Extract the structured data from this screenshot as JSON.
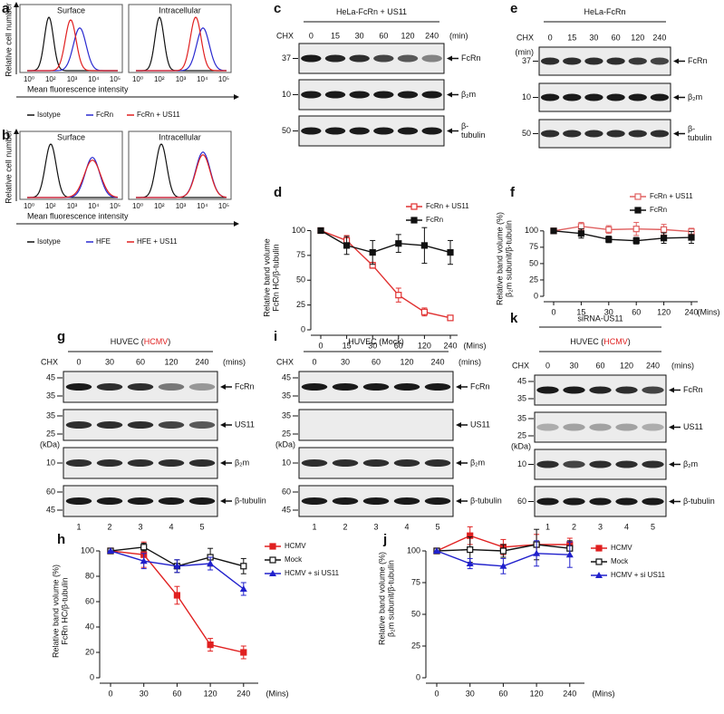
{
  "flow": [
    {
      "panel": "a",
      "boxes": [
        "Surface",
        "Intracellular"
      ],
      "y_label": "Relative cell number",
      "x_label": "Mean fluorescence intensity",
      "x_ticks": [
        "10⁰",
        "10²",
        "10³",
        "10⁴",
        "10⁵"
      ],
      "legend": [
        {
          "name": "Isotype",
          "color": "#111111"
        },
        {
          "name": "FcRn",
          "color": "#2a2ad0"
        },
        {
          "name": "FcRn + US11",
          "color": "#e02020"
        }
      ]
    },
    {
      "panel": "b",
      "boxes": [
        "Surface",
        "Intracellular"
      ],
      "y_label": "Relative cell number",
      "x_label": "Mean fluorescence intensity",
      "x_ticks": [
        "10⁰",
        "10²",
        "10³",
        "10⁴",
        "10⁵"
      ],
      "legend": [
        {
          "name": "Isotype",
          "color": "#111111"
        },
        {
          "name": "HFE",
          "color": "#2a2ad0"
        },
        {
          "name": "HFE + US11",
          "color": "#e02020"
        }
      ]
    }
  ],
  "blots": [
    {
      "panel": "c",
      "title": [
        {
          "text": "HeLa-FcRn + US11",
          "color": "#111111"
        }
      ],
      "treatment": "CHX",
      "times": [
        0,
        15,
        30,
        60,
        120,
        240
      ],
      "unit": "(min)",
      "rows": [
        {
          "markers": [
            37
          ],
          "label": [
            "FcRn"
          ]
        },
        {
          "markers": [
            10
          ],
          "label": [
            "β₂m"
          ]
        },
        {
          "markers": [
            50
          ],
          "label": [
            "β-",
            "tubulin"
          ]
        }
      ]
    },
    {
      "panel": "e",
      "title": [
        {
          "text": "HeLa-FcRn",
          "color": "#111111"
        }
      ],
      "treatment": "CHX",
      "times": [
        0,
        15,
        30,
        60,
        120,
        240
      ],
      "unit": "(min)",
      "rows": [
        {
          "markers": [
            37
          ],
          "label": [
            "FcRn"
          ]
        },
        {
          "markers": [
            10
          ],
          "label": [
            "β₂m"
          ]
        },
        {
          "markers": [
            50
          ],
          "label": [
            "β-",
            "tubulin"
          ]
        }
      ]
    },
    {
      "panel": "g",
      "title": [
        {
          "text": "HUVEC (",
          "color": "#111111"
        },
        {
          "text": "HCMV",
          "color": "#e02020"
        },
        {
          "text": ")",
          "color": "#111111"
        }
      ],
      "treatment": "CHX",
      "times": [
        0,
        30,
        60,
        120,
        240
      ],
      "unit": "(mins)",
      "rows": [
        {
          "markers": [
            45,
            35
          ],
          "label": [
            "FcRn"
          ]
        },
        {
          "markers": [
            35,
            25
          ],
          "label": [
            "US11"
          ]
        },
        {
          "kda": "(kDa)",
          "markers": [
            10
          ],
          "label": [
            "β₂m"
          ]
        },
        {
          "markers": [
            60,
            45
          ],
          "label": [
            "β-tubulin"
          ]
        }
      ],
      "lanes": [
        1,
        2,
        3,
        4,
        5
      ]
    },
    {
      "panel": "i",
      "title": [
        {
          "text": "HUVEC (Mock)",
          "color": "#111111"
        }
      ],
      "treatment": "CHX",
      "times": [
        0,
        30,
        60,
        120,
        240
      ],
      "unit": "(mins)",
      "rows": [
        {
          "markers": [
            45,
            35
          ],
          "label": [
            "FcRn"
          ]
        },
        {
          "markers": [
            35,
            25
          ],
          "label": [
            "US11"
          ]
        },
        {
          "kda": "(kDa)",
          "markers": [
            10
          ],
          "label": [
            "β₂m"
          ]
        },
        {
          "markers": [
            60,
            45
          ],
          "label": [
            "β-tubulin"
          ]
        }
      ],
      "lanes": [
        1,
        2,
        3,
        4,
        5
      ]
    },
    {
      "panel": "k",
      "supertitle": "siRNA-US11",
      "title": [
        {
          "text": "HUVEC (",
          "color": "#111111"
        },
        {
          "text": "HCMV",
          "color": "#e02020"
        },
        {
          "text": ")",
          "color": "#111111"
        }
      ],
      "treatment": "CHX",
      "times": [
        0,
        30,
        60,
        120,
        240
      ],
      "unit": "(mins)",
      "rows": [
        {
          "markers": [
            45,
            35
          ],
          "label": [
            "FcRn"
          ]
        },
        {
          "markers": [
            35,
            25
          ],
          "label": [
            "US11"
          ]
        },
        {
          "kda": "(kDa)",
          "markers": [
            10
          ],
          "label": [
            "β₂m"
          ]
        },
        {
          "markers": [
            60
          ],
          "label": [
            "β-tubulin"
          ]
        }
      ],
      "lanes": [
        1,
        2,
        3,
        4,
        5
      ]
    }
  ],
  "chart_data": [
    {
      "type": "line",
      "panel": "d",
      "y_label": [
        "Relative band volume",
        "FcRn HC/β-tubulin"
      ],
      "x_label": "(Mins)",
      "categories": [
        "0",
        "15",
        "30",
        "60",
        "120",
        "240"
      ],
      "ylim": [
        0,
        105
      ],
      "yticks": [
        0,
        25,
        50,
        75,
        100
      ],
      "legend": "upper right",
      "series": [
        {
          "name": "FcRn + US11",
          "color": "#e03030",
          "marker": "square-open",
          "values": [
            100,
            90,
            65,
            35,
            18,
            12
          ],
          "errors": [
            0,
            5,
            3,
            7,
            4,
            2
          ]
        },
        {
          "name": "FcRn",
          "color": "#111111",
          "marker": "square",
          "values": [
            100,
            85,
            78,
            87,
            85,
            78
          ],
          "errors": [
            0,
            9,
            12,
            9,
            18,
            12
          ]
        }
      ]
    },
    {
      "type": "line",
      "panel": "f",
      "y_label": [
        "Relative band volume (%)",
        "β₂m subunit/β-tubulin"
      ],
      "x_label": "(Mins)",
      "categories": [
        "0",
        "15",
        "30",
        "60",
        "120",
        "240"
      ],
      "ylim": [
        0,
        115
      ],
      "yticks": [
        0,
        25,
        50,
        75,
        100
      ],
      "legend": "upper right",
      "series": [
        {
          "name": "FcRn + US11",
          "color": "#e06060",
          "marker": "square-open",
          "values": [
            100,
            107,
            102,
            103,
            102,
            99
          ],
          "errors": [
            0,
            6,
            6,
            10,
            8,
            5
          ]
        },
        {
          "name": "FcRn",
          "color": "#111111",
          "marker": "square",
          "values": [
            100,
            96,
            87,
            85,
            89,
            90
          ],
          "errors": [
            0,
            7,
            5,
            5,
            8,
            9
          ]
        }
      ]
    },
    {
      "type": "line",
      "panel": "h",
      "y_label": [
        "Relative band volume (%)",
        "FcRn HC/β-tubulin"
      ],
      "x_label": "(Mins)",
      "categories": [
        "0",
        "30",
        "60",
        "120",
        "240"
      ],
      "ylim": [
        0,
        105
      ],
      "yticks": [
        0,
        20,
        40,
        60,
        80,
        100
      ],
      "legend": "upper right",
      "series": [
        {
          "name": "HCMV",
          "color": "#e02020",
          "marker": "square",
          "values": [
            100,
            97,
            65,
            26,
            20
          ],
          "errors": [
            0,
            10,
            7,
            5,
            5
          ]
        },
        {
          "name": "Mock",
          "color": "#111111",
          "marker": "square-open",
          "values": [
            100,
            103,
            88,
            95,
            88
          ],
          "errors": [
            0,
            3,
            5,
            7,
            6
          ]
        },
        {
          "name": "HCMV + si US11",
          "color": "#2020cc",
          "marker": "triangle",
          "values": [
            100,
            92,
            88,
            90,
            70
          ],
          "errors": [
            0,
            6,
            5,
            5,
            5
          ]
        }
      ]
    },
    {
      "type": "line",
      "panel": "j",
      "y_label": [
        "Relative band volume (%)",
        "β₂m subunit/β-tubulin"
      ],
      "x_label": "(Mins)",
      "categories": [
        "0",
        "30",
        "60",
        "120",
        "240"
      ],
      "ylim": [
        0,
        125
      ],
      "yticks": [
        0,
        25,
        50,
        75,
        100
      ],
      "legend": "upper right",
      "series": [
        {
          "name": "HCMV",
          "color": "#e02020",
          "marker": "square",
          "values": [
            100,
            112,
            103,
            105,
            105
          ],
          "errors": [
            0,
            7,
            6,
            8,
            5
          ]
        },
        {
          "name": "Mock",
          "color": "#111111",
          "marker": "square-open",
          "values": [
            100,
            101,
            100,
            105,
            102
          ],
          "errors": [
            0,
            10,
            5,
            12,
            6
          ]
        },
        {
          "name": "HCMV + si US11",
          "color": "#2020cc",
          "marker": "triangle",
          "values": [
            100,
            90,
            88,
            98,
            97
          ],
          "errors": [
            0,
            4,
            6,
            10,
            10
          ]
        }
      ]
    }
  ]
}
